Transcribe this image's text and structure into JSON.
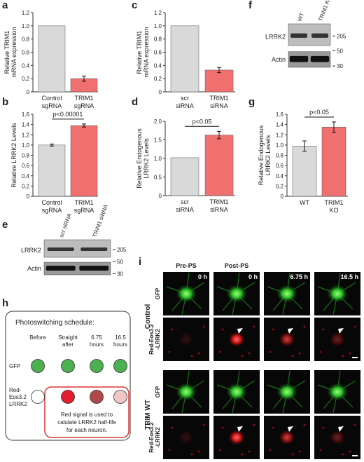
{
  "panel_labels": [
    "a",
    "b",
    "c",
    "d",
    "e",
    "f",
    "g",
    "h",
    "i"
  ],
  "chart_data": [
    {
      "type": "bar",
      "ylabel": [
        "Relative TRIM1",
        "mRNA expression"
      ],
      "categories": [
        "Control sgRNA",
        "TRIM1 sgRNA"
      ],
      "values": [
        1.0,
        0.2
      ],
      "errors": [
        null,
        0.04
      ],
      "colors": [
        "#d9d9d9",
        "#f07070"
      ],
      "ylim": [
        0,
        1.2
      ],
      "yticks": [
        0,
        0.2,
        0.4,
        0.6,
        0.8,
        {
          "value": 1,
          "label": "1.0"
        },
        1.2
      ]
    },
    {
      "type": "bar",
      "ylabel": [
        "Relative LRRK2 Levels"
      ],
      "categories": [
        "Control sgRNA",
        "TRIM1 sgRNA"
      ],
      "values": [
        1.0,
        1.38
      ],
      "errors": [
        0.02,
        0.03
      ],
      "colors": [
        "#d9d9d9",
        "#f07070"
      ],
      "ylim": [
        0,
        1.6
      ],
      "annotation": "p<0.00001",
      "yticks": [
        0,
        0.2,
        0.4,
        0.6,
        0.8,
        {
          "value": 1,
          "label": "1.0"
        },
        1.2,
        1.4,
        1.6
      ]
    },
    {
      "type": "bar",
      "ylabel": [
        "Relative TRIM1",
        "mRNA expression"
      ],
      "categories": [
        "scr siRNA",
        "TRIM1 siRNA"
      ],
      "values": [
        1.0,
        0.33
      ],
      "errors": [
        null,
        0.04
      ],
      "colors": [
        "#d9d9d9",
        "#f07070"
      ],
      "ylim": [
        0,
        1.2
      ],
      "yticks": [
        0,
        0.2,
        0.4,
        0.6,
        0.8,
        {
          "value": 1,
          "label": "1.0"
        },
        1.2
      ]
    },
    {
      "type": "bar",
      "ylabel": [
        "Relative Endogenous",
        "LRRK2 Levels"
      ],
      "categories": [
        "scr siRNA",
        "TRIM1 siRNA"
      ],
      "values": [
        1.02,
        1.63
      ],
      "errors": [
        null,
        0.1
      ],
      "colors": [
        "#d9d9d9",
        "#f07070"
      ],
      "ylim": [
        0,
        2
      ],
      "annotation": "p<0.05",
      "yticks": [
        0,
        0.5,
        {
          "value": 1,
          "label": "1.0"
        },
        1.5,
        {
          "value": 2,
          "label": "2.0"
        }
      ]
    },
    {
      "type": "bar",
      "ylabel": [
        "Relative Endogenous",
        "LRRK2 Levels"
      ],
      "categories": [
        "WT",
        "TRIM1 KO"
      ],
      "values": [
        0.98,
        1.35
      ],
      "errors": [
        0.1,
        0.1
      ],
      "colors": [
        "#d9d9d9",
        "#f07070"
      ],
      "ylim": [
        0,
        1.6
      ],
      "annotation": "p<0.05",
      "yticks": [
        0,
        0.2,
        0.4,
        0.6,
        0.8,
        {
          "value": 1,
          "label": "1.0"
        },
        1.2,
        1.4,
        1.6
      ]
    }
  ],
  "blots": [
    {
      "lanes": [
        "scr siRNA",
        "TRIM1 siRNA"
      ],
      "bands": [
        "LRRK2",
        "Actin"
      ],
      "markers": [
        "205",
        "50",
        "30"
      ]
    },
    {
      "lanes": [
        "WT",
        "TRIM1 KO"
      ],
      "bands": [
        "LRRK2",
        "Actin"
      ],
      "markers": [
        "205",
        "50",
        "30"
      ]
    }
  ],
  "schedule": {
    "title": "Photoswitching schedule:",
    "columns": [
      "Before",
      "Straight after",
      "6.75 hours",
      "16.5 hours"
    ],
    "rows": [
      [
        "GFP"
      ],
      [
        "Red-",
        "Eos3.2",
        "LRRK2"
      ]
    ],
    "note": [
      "Red signal is used to",
      "calulate LRRK2 half-life",
      "for each neuron."
    ]
  },
  "imaging": {
    "phases": [
      "Pre-PS",
      "Post-PS"
    ],
    "times": [
      "0 h",
      "0 h",
      "6.75 h",
      "16.5 h"
    ],
    "groups": [
      {
        "name": "Control",
        "rows": [
          [
            "GFP"
          ],
          [
            "Red-Eos3.2",
            "-LRRK2"
          ]
        ]
      },
      {
        "name": "TRIM WT",
        "rows": [
          [
            "GFP"
          ],
          [
            "Red-Eos3.2",
            "-LRRK2"
          ]
        ]
      }
    ]
  }
}
